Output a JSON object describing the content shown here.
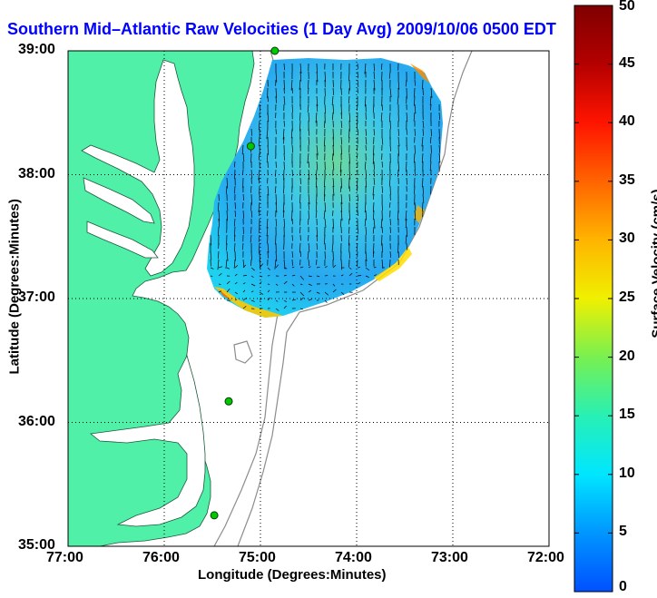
{
  "title": "Southern Mid–Atlantic Raw Velocities (1 Day Avg) 2009/10/06 0500 EDT",
  "x_axis": {
    "label": "Longitude (Degrees:Minutes)",
    "ticks": [
      "77:00",
      "76:00",
      "75:00",
      "74:00",
      "73:00",
      "72:00"
    ]
  },
  "y_axis": {
    "label": "Latitude (Degrees:Minutes)",
    "ticks": [
      "35:00",
      "36:00",
      "37:00",
      "38:00",
      "39:00"
    ]
  },
  "colorbar": {
    "label": "Surface Velocity (cm/s)",
    "ticks": [
      "0",
      "5",
      "10",
      "15",
      "20",
      "25",
      "30",
      "35",
      "40",
      "45",
      "50"
    ],
    "colors": [
      "#0050ff",
      "#0096ff",
      "#00e6ff",
      "#28f0b4",
      "#78f050",
      "#f0f000",
      "#ffb400",
      "#ff6400",
      "#ff1400",
      "#b40000",
      "#800000"
    ]
  },
  "colors": {
    "land": "#50f0a8",
    "ocean": "#ffffff",
    "title": "#0000ff",
    "sites": "#00c800"
  },
  "chart_data": {
    "type": "heatmap",
    "xlim": [
      -77,
      -72
    ],
    "ylim": [
      35,
      39
    ],
    "grid": "dotted",
    "field": "surface current velocity vectors",
    "sites": [
      {
        "lon": -74.85,
        "lat": 39.0
      },
      {
        "lon": -75.1,
        "lat": 38.23
      },
      {
        "lon": -75.33,
        "lat": 36.17
      },
      {
        "lon": -75.48,
        "lat": 35.25
      }
    ]
  }
}
